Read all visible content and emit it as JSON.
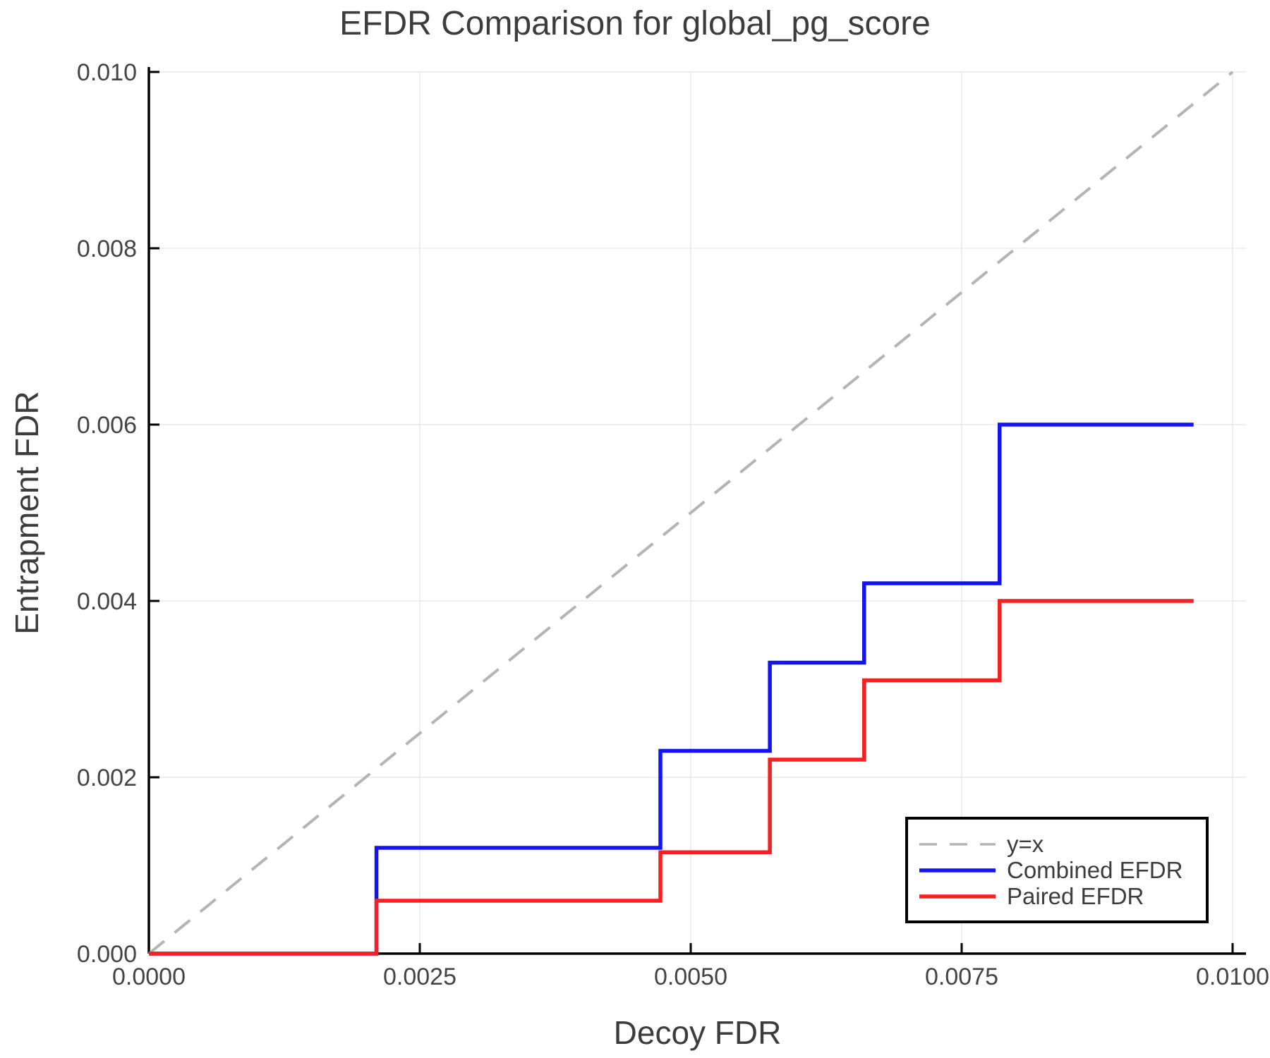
{
  "chart_data": {
    "type": "line",
    "subtype": "step",
    "title": "EFDR Comparison for global_pg_score",
    "xlabel": "Decoy FDR",
    "ylabel": "Entrapment FDR",
    "xlim": [
      0.0,
      0.0101
    ],
    "ylim": [
      0.0,
      0.01
    ],
    "grid": true,
    "legend_position": "bottom-right",
    "x_ticks": {
      "values": [
        0.0,
        0.0025,
        0.005,
        0.0075,
        0.01
      ],
      "labels": [
        "0.0000",
        "0.0025",
        "0.0050",
        "0.0075",
        "0.0100"
      ]
    },
    "y_ticks": {
      "values": [
        0.0,
        0.002,
        0.004,
        0.006,
        0.008,
        0.01
      ],
      "labels": [
        "0.000",
        "0.002",
        "0.004",
        "0.006",
        "0.008",
        "0.010"
      ]
    },
    "series": [
      {
        "key": "yx",
        "name": "y=x",
        "style": "dashed",
        "color": "#b4b4b4",
        "width": 4,
        "points": [
          [
            0.0,
            0.0
          ],
          [
            0.01,
            0.01
          ]
        ]
      },
      {
        "key": "combined-efdr",
        "name": "Combined EFDR",
        "style": "solid",
        "color": "#1414f0",
        "width": 5.5,
        "points": [
          [
            0.0,
            0.0
          ],
          [
            0.0021,
            0.0
          ],
          [
            0.0021,
            0.0012
          ],
          [
            0.00472,
            0.0012
          ],
          [
            0.00472,
            0.0023
          ],
          [
            0.00573,
            0.0023
          ],
          [
            0.00573,
            0.0033
          ],
          [
            0.0066,
            0.0033
          ],
          [
            0.0066,
            0.0042
          ],
          [
            0.00785,
            0.0042
          ],
          [
            0.00785,
            0.006
          ],
          [
            0.00964,
            0.006
          ]
        ]
      },
      {
        "key": "paired-efdr",
        "name": "Paired EFDR",
        "style": "solid",
        "color": "#f52020",
        "width": 5.5,
        "points": [
          [
            0.0,
            0.0
          ],
          [
            0.0021,
            0.0
          ],
          [
            0.0021,
            0.0006
          ],
          [
            0.00472,
            0.0006
          ],
          [
            0.00472,
            0.00115
          ],
          [
            0.00573,
            0.00115
          ],
          [
            0.00573,
            0.0022
          ],
          [
            0.0066,
            0.0022
          ],
          [
            0.0066,
            0.0031
          ],
          [
            0.00785,
            0.0031
          ],
          [
            0.00785,
            0.004
          ],
          [
            0.00964,
            0.004
          ]
        ]
      }
    ],
    "colors": {
      "text": "#3c3c3c",
      "tick_label": "#444444",
      "grid": "#e8e8e8",
      "spine": "#000000",
      "background": "#ffffff"
    }
  }
}
